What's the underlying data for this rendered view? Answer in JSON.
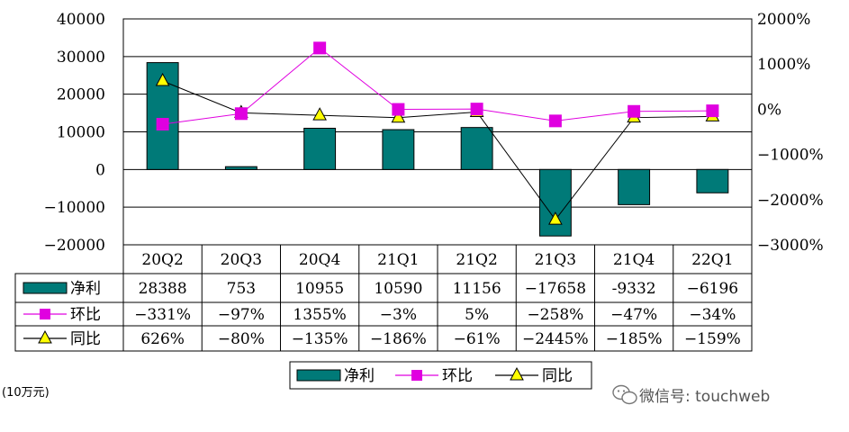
{
  "chart_data": {
    "type": "bar",
    "categories": [
      "20Q2",
      "20Q3",
      "20Q4",
      "21Q1",
      "21Q2",
      "21Q3",
      "21Q4",
      "22Q1"
    ],
    "series": [
      {
        "name": "净利",
        "type": "bar",
        "axis": "left",
        "values": [
          28388,
          753,
          10955,
          10590,
          11156,
          -17658,
          -9332,
          -6196
        ],
        "labels": [
          "28388",
          "753",
          "10955",
          "10590",
          "11156",
          "−17658",
          "-9332",
          "−6196"
        ],
        "color": "#007a78"
      },
      {
        "name": "环比",
        "type": "line",
        "axis": "right",
        "unit": "%",
        "values": [
          -331,
          -97,
          1355,
          -3,
          5,
          -258,
          -47,
          -34
        ],
        "labels": [
          "−331%",
          "−97%",
          "1355%",
          "−3%",
          "5%",
          "−258%",
          "−47%",
          "−34%"
        ],
        "color": "#e000e0"
      },
      {
        "name": "同比",
        "type": "line",
        "axis": "right",
        "unit": "%",
        "values": [
          626,
          -80,
          -135,
          -186,
          -61,
          -2445,
          -185,
          -159
        ],
        "labels": [
          "626%",
          "−80%",
          "−135%",
          "−186%",
          "−61%",
          "−2445%",
          "−185%",
          "−159%"
        ],
        "color": "#ffff00"
      }
    ],
    "left_axis": {
      "min": -20000,
      "max": 40000,
      "ticks": [
        40000,
        30000,
        20000,
        10000,
        0,
        -10000,
        -20000
      ],
      "tick_labels": [
        "40000",
        "30000",
        "20000",
        "10000",
        "0",
        "−10000",
        "−20000"
      ]
    },
    "right_axis": {
      "min": -3000,
      "max": 2000,
      "ticks": [
        2000,
        1000,
        0,
        -1000,
        -2000,
        -3000
      ],
      "tick_labels": [
        "2000%",
        "1000%",
        "0%",
        "−1000%",
        "−2000%",
        "−3000%"
      ]
    },
    "unit_note": "(10万元)",
    "grid": true,
    "legend_position": "bottom-center"
  },
  "watermark": {
    "text": "微信号: touchweb"
  }
}
